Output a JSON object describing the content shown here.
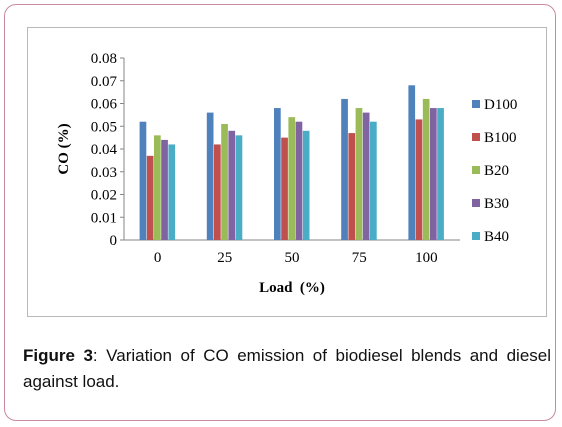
{
  "colors": {
    "D100": "#4f81bd",
    "B100": "#c0504d",
    "B20": "#9bbb59",
    "B30": "#8064a2",
    "B40": "#4bacc6"
  },
  "chart_data": {
    "type": "bar",
    "title": "",
    "xlabel": "Load  (%)",
    "ylabel": "CO (%)",
    "categories": [
      "0",
      "25",
      "50",
      "75",
      "100"
    ],
    "ylim": [
      0,
      0.08
    ],
    "yticks": [
      "0",
      "0.01",
      "0.02",
      "0.03",
      "0.04",
      "0.05",
      "0.06",
      "0.07",
      "0.08"
    ],
    "legend_position": "right",
    "grid": false,
    "series": [
      {
        "name": "D100",
        "values": [
          0.052,
          0.056,
          0.058,
          0.062,
          0.068
        ]
      },
      {
        "name": "B100",
        "values": [
          0.037,
          0.042,
          0.045,
          0.047,
          0.053
        ]
      },
      {
        "name": "B20",
        "values": [
          0.046,
          0.051,
          0.054,
          0.058,
          0.062
        ]
      },
      {
        "name": "B30",
        "values": [
          0.044,
          0.048,
          0.052,
          0.056,
          0.058
        ]
      },
      {
        "name": "B40",
        "values": [
          0.042,
          0.046,
          0.048,
          0.052,
          0.058
        ]
      }
    ]
  },
  "caption": {
    "label": "Figure 3",
    "text": ": Variation of CO emission of biodiesel blends and diesel against load."
  }
}
